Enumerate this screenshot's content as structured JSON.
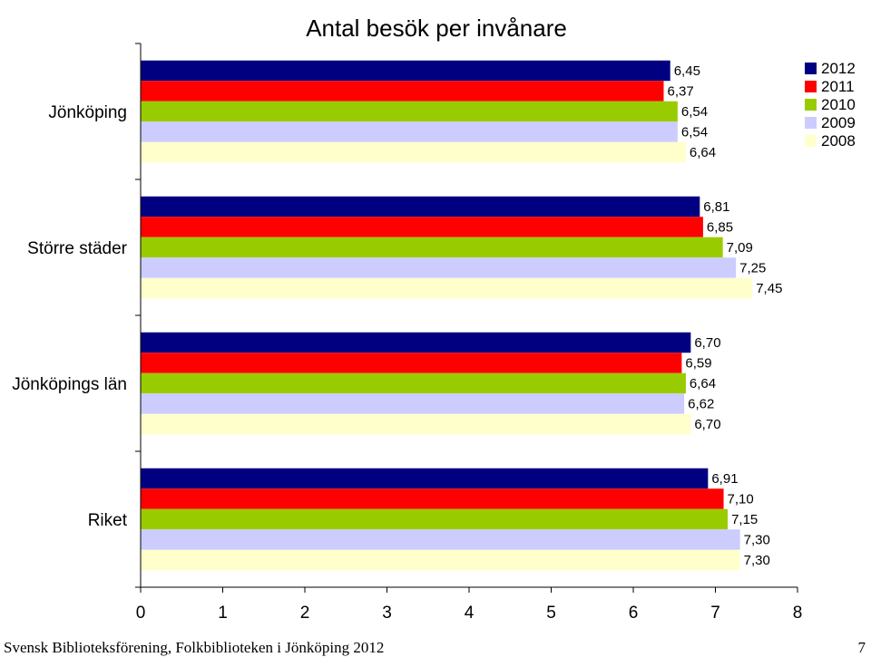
{
  "chart_data": {
    "type": "bar",
    "orientation": "horizontal",
    "title": "Antal besök per invånare",
    "categories": [
      "Jönköping",
      "Större städer",
      "Jönköpings län",
      "Riket"
    ],
    "series": [
      {
        "name": "2012",
        "color": "#000080",
        "values": [
          6.45,
          6.81,
          6.7,
          6.91
        ],
        "labels": [
          "6,45",
          "6,81",
          "6,70",
          "6,91"
        ]
      },
      {
        "name": "2011",
        "color": "#ff0000",
        "values": [
          6.37,
          6.85,
          6.59,
          7.1
        ],
        "labels": [
          "6,37",
          "6,85",
          "6,59",
          "7,10"
        ]
      },
      {
        "name": "2010",
        "color": "#99cc00",
        "values": [
          6.54,
          7.09,
          6.64,
          7.15
        ],
        "labels": [
          "6,54",
          "7,09",
          "6,64",
          "7,15"
        ]
      },
      {
        "name": "2009",
        "color": "#ccccff",
        "values": [
          6.54,
          7.25,
          6.62,
          7.3
        ],
        "labels": [
          "6,54",
          "7,25",
          "6,62",
          "7,30"
        ]
      },
      {
        "name": "2008",
        "color": "#ffffcc",
        "values": [
          6.64,
          7.45,
          6.7,
          7.3
        ],
        "labels": [
          "6,64",
          "7,45",
          "6,70",
          "7,30"
        ]
      }
    ],
    "xlim": [
      0,
      8
    ],
    "xticks": [
      "0",
      "1",
      "2",
      "3",
      "4",
      "5",
      "6",
      "7",
      "8"
    ],
    "legend_position": "top-right",
    "grid": false
  },
  "footer": {
    "left": "Svensk Biblioteksförening, Folkbiblioteken i Jönköping 2012",
    "page_number": "7"
  }
}
